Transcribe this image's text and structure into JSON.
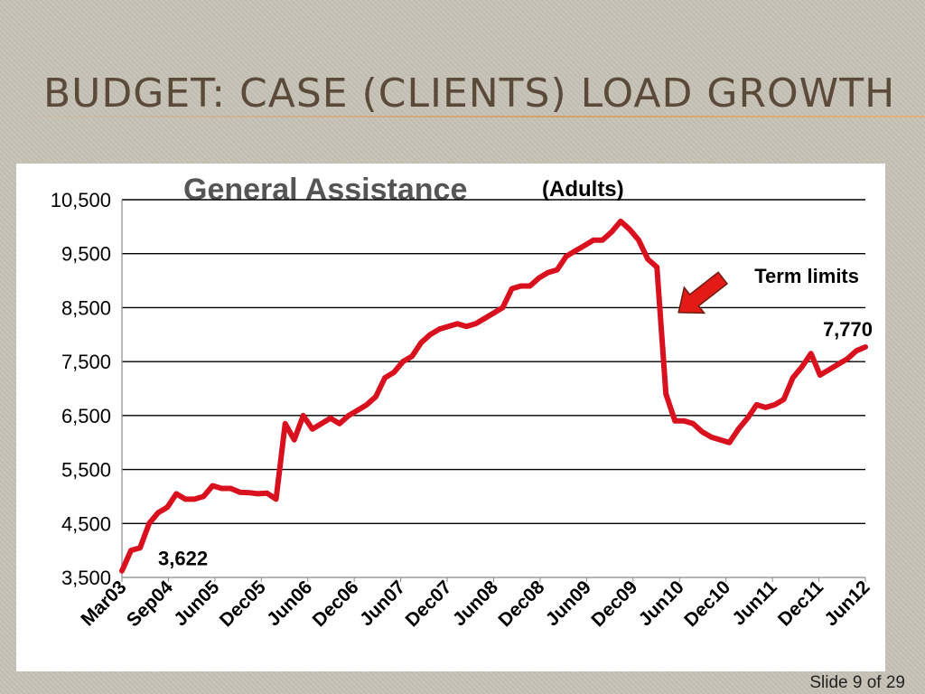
{
  "slide": {
    "title": "Budget: Case (Clients) Load Growth",
    "number_label": "Slide 9 of 29"
  },
  "chart_data": {
    "type": "line",
    "title": "General Assistance",
    "subtitle": "(Adults)",
    "xlabel": "",
    "ylabel": "",
    "ylim": [
      3500,
      10500
    ],
    "yticks": [
      3500,
      4500,
      5500,
      6500,
      7500,
      8500,
      9500,
      10500
    ],
    "ytick_labels": [
      "3,500",
      "4,500",
      "5,500",
      "6,500",
      "7,500",
      "8,500",
      "9,500",
      "10,500"
    ],
    "xtick_labels": [
      "Mar03",
      "Sep04",
      "Jun05",
      "Dec05",
      "Jun06",
      "Dec06",
      "Jun07",
      "Dec07",
      "Jun08",
      "Dec08",
      "Jun09",
      "Dec09",
      "Jun10",
      "Dec10",
      "Jun11",
      "Dec11",
      "Jun12"
    ],
    "grid": true,
    "series_color": "#d9101e",
    "series": [
      {
        "values": [
          3622,
          4000,
          4050,
          4500,
          4700,
          4800,
          5050,
          4950,
          4950,
          5000,
          5200,
          5150,
          5150,
          5080,
          5070,
          5050,
          5060,
          4950,
          6350,
          6050,
          6500,
          6250,
          6350,
          6450,
          6350,
          6500,
          6600,
          6700,
          6850,
          7200,
          7300,
          7500,
          7600,
          7850,
          8000,
          8100,
          8150,
          8200,
          8150,
          8200,
          8300,
          8400,
          8500,
          8850,
          8900,
          8900,
          9050,
          9150,
          9200,
          9450,
          9550,
          9650,
          9750,
          9750,
          9900,
          10100,
          9950,
          9750,
          9400,
          9250,
          6900,
          6400,
          6400,
          6350,
          6200,
          6100,
          6050,
          6000,
          6250,
          6450,
          6700,
          6650,
          6700,
          6800,
          7200,
          7400,
          7650,
          7250,
          7350,
          7450,
          7550,
          7700,
          7770
        ]
      }
    ],
    "annotations": [
      {
        "text": "3,622",
        "target": "start"
      },
      {
        "text": "7,770",
        "target": "end"
      },
      {
        "text": "Term limits",
        "target": "drop",
        "arrow_color": "#e31b16"
      }
    ]
  }
}
